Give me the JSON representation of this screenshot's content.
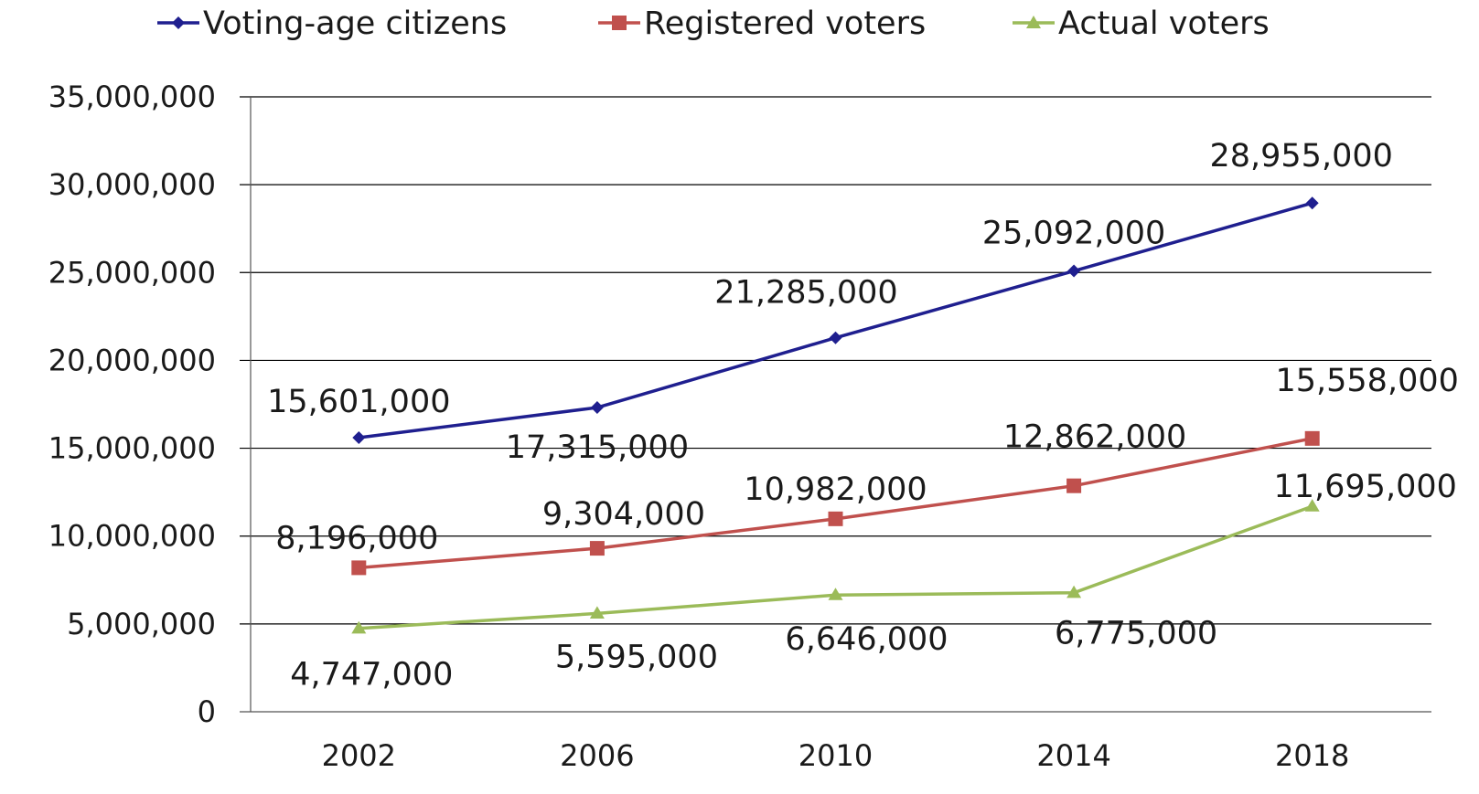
{
  "chart_data": {
    "type": "line",
    "title": "",
    "xlabel": "",
    "ylabel": "",
    "categories": [
      "2002",
      "2006",
      "2010",
      "2014",
      "2018"
    ],
    "ylim": [
      0,
      35000000
    ],
    "y_ticks": [
      0,
      5000000,
      10000000,
      15000000,
      20000000,
      25000000,
      30000000,
      35000000
    ],
    "y_tick_labels": [
      "0",
      "5,000,000",
      "10,000,000",
      "15,000,000",
      "20,000,000",
      "25,000,000",
      "30,000,000",
      "35,000,000"
    ],
    "grid": true,
    "legend_position": "top",
    "series": [
      {
        "name": "Voting-age citizens",
        "color": "#1f1f8f",
        "marker": "diamond",
        "values": [
          15601000,
          17315000,
          21285000,
          25092000,
          28955000
        ],
        "labels": [
          "15,601,000",
          "17,315,000",
          "21,285,000",
          "25,092,000",
          "28,955,000"
        ]
      },
      {
        "name": "Registered voters",
        "color": "#c0504d",
        "marker": "square",
        "values": [
          8196000,
          9304000,
          10982000,
          12862000,
          15558000
        ],
        "labels": [
          "8,196,000",
          "9,304,000",
          "10,982,000",
          "12,862,000",
          "15,558,000"
        ]
      },
      {
        "name": "Actual voters",
        "color": "#9bbb59",
        "marker": "triangle",
        "values": [
          4747000,
          5595000,
          6646000,
          6775000,
          11695000
        ],
        "labels": [
          "4,747,000",
          "5,595,000",
          "6,646,000",
          "6,775,000",
          "11,695,000"
        ]
      }
    ]
  }
}
